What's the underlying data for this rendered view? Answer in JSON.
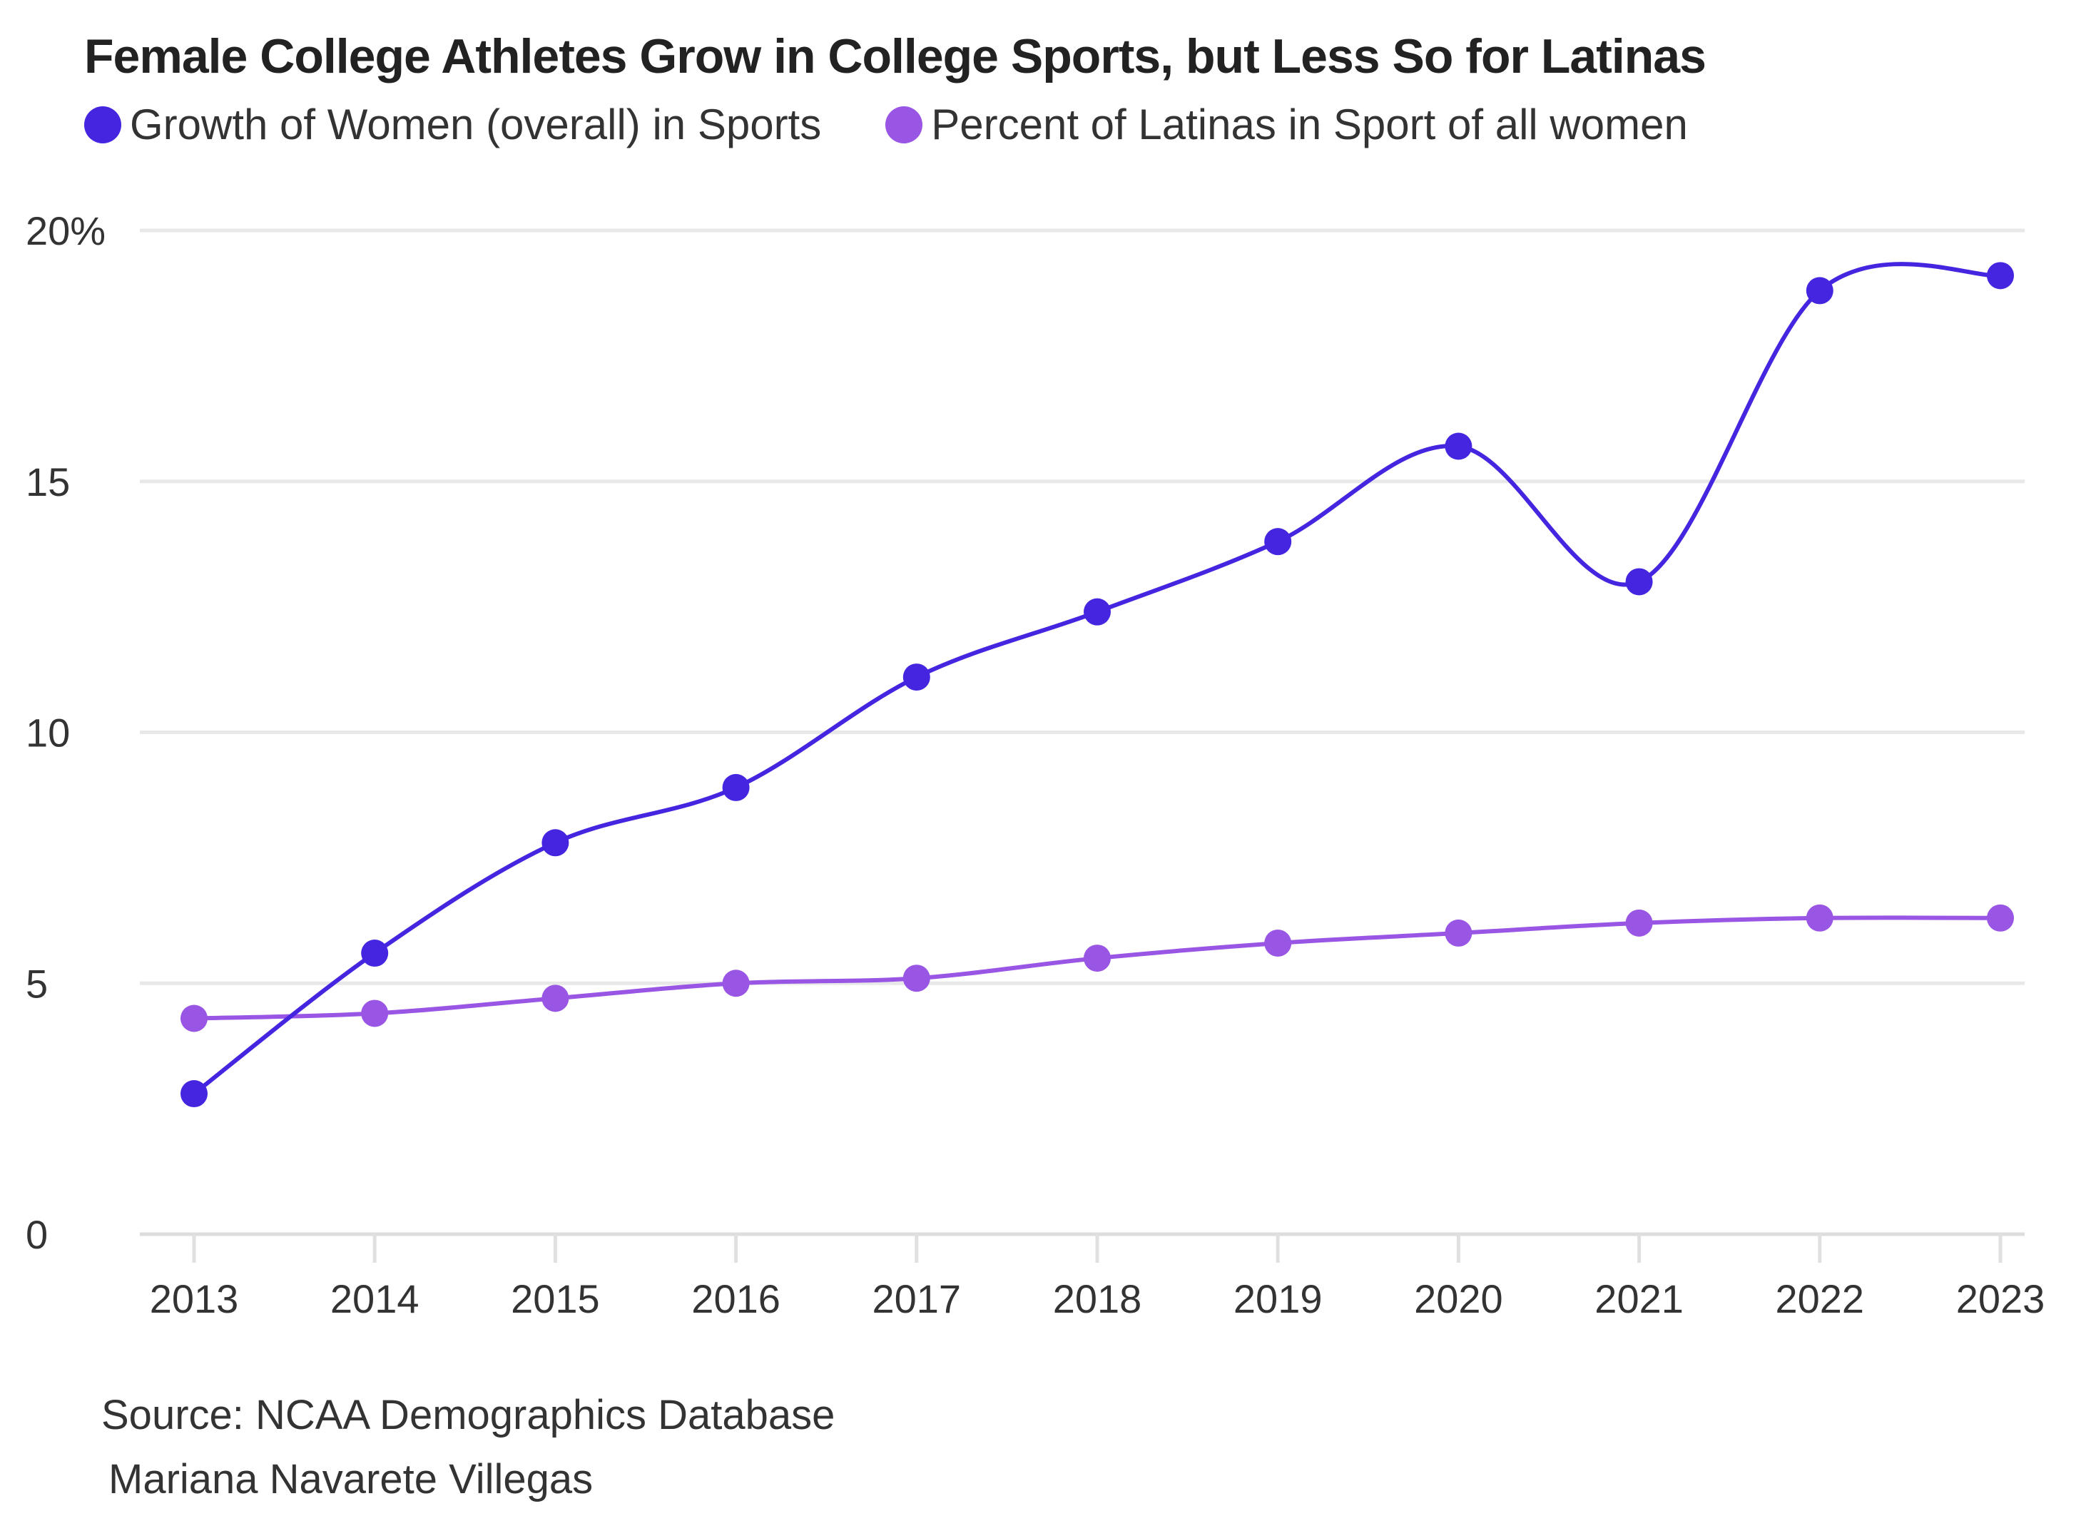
{
  "chart_data": {
    "type": "line",
    "title": "Female College Athletes Grow in College Sports, but Less So for Latinas",
    "x": [
      "2013",
      "2014",
      "2015",
      "2016",
      "2017",
      "2018",
      "2019",
      "2020",
      "2021",
      "2022",
      "2023"
    ],
    "y_ticks": [
      {
        "value": 20,
        "label": "20%"
      },
      {
        "value": 15,
        "label": "15"
      },
      {
        "value": 10,
        "label": "10"
      },
      {
        "value": 5,
        "label": "5"
      },
      {
        "value": 0,
        "label": "0"
      }
    ],
    "ylim": [
      0,
      20
    ],
    "grid": true,
    "legend": "top-left",
    "series": [
      {
        "name": "Growth of Women (overall) in Sports",
        "color": "#4525DF",
        "values": [
          2.8,
          5.6,
          7.8,
          8.9,
          11.1,
          12.4,
          13.8,
          15.7,
          13.0,
          18.8,
          19.1
        ]
      },
      {
        "name": "Percent of Latinas in Sport of all women",
        "color": "#9955E4",
        "values": [
          4.3,
          4.4,
          4.7,
          5.0,
          5.1,
          5.5,
          5.8,
          6.0,
          6.2,
          6.3,
          6.3
        ]
      }
    ]
  },
  "footer": {
    "source": "Source: NCAA Demographics Database",
    "author": "Mariana Navarete Villegas"
  }
}
